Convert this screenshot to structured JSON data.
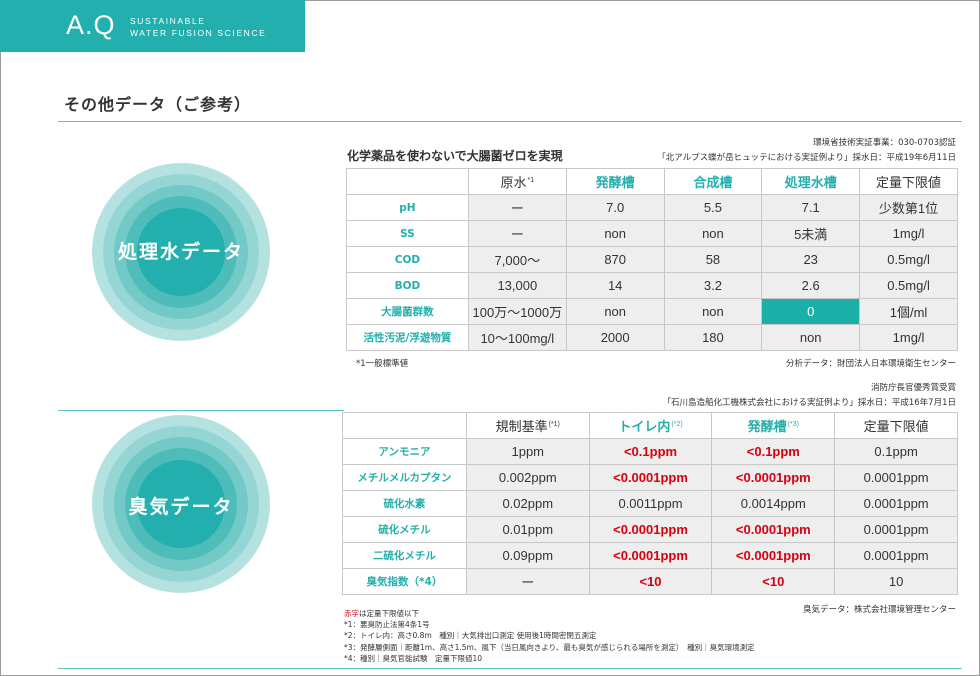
{
  "brand": {
    "mark": "A.Q",
    "tagline_1": "SUSTAINABLE",
    "tagline_2": "WATER FUSION SCIENCE"
  },
  "page_title": "その他データ（ご参考）",
  "colors": {
    "accent": "#23afad",
    "highlight": "#1ab0a8",
    "alert_red": "#d8000e"
  },
  "section1": {
    "circle_label": "処理水データ",
    "certification": "環境省技術実証事業：030-0703認証",
    "source_line": "「北アルプス蝶が岳ヒュッテにおける実証例より」採水日：平成19年6月11日",
    "table_title": "化学薬品を使わないで大腸菌ゼロを実現",
    "headers": [
      "",
      "原水",
      "発酵槽",
      "合成槽",
      "処理水槽",
      "定量下限値"
    ],
    "header_note": "*1",
    "rows": [
      {
        "label": "pH",
        "c1": "ー",
        "c2": "7.0",
        "c3": "5.5",
        "c4": "7.1",
        "c5": "少数第1位"
      },
      {
        "label": "SS",
        "c1": "ー",
        "c2": "non",
        "c3": "non",
        "c4": "5未満",
        "c5": "1mg/l"
      },
      {
        "label": "COD",
        "c1": "7,000〜",
        "c2": "870",
        "c3": "58",
        "c4": "23",
        "c5": "0.5mg/l"
      },
      {
        "label": "BOD",
        "c1": "13,000",
        "c2": "14",
        "c3": "3.2",
        "c4": "2.6",
        "c5": "0.5mg/l"
      },
      {
        "label": "大腸菌群数",
        "c1": "100万〜1000万",
        "c2": "non",
        "c3": "non",
        "c4": "0",
        "c5": "1個/ml"
      },
      {
        "label": "活性汚泥/浮遊物質",
        "c1": "10〜100mg/l",
        "c2": "2000",
        "c3": "180",
        "c4": "non",
        "c5": "1mg/l"
      }
    ],
    "footnote": "*1一般標準値",
    "analysis": "分析データ：財団法人日本環境衛生センター"
  },
  "section2": {
    "circle_label": "臭気データ",
    "award": "消防庁長官優秀賞受賞",
    "source_line": "「石川島造船化工機株式会社における実証例より」採水日：平成16年7月1日",
    "headers": [
      "",
      "規制基準",
      "トイレ内",
      "発酵槽",
      "定量下限値"
    ],
    "header_notes": [
      "",
      "(*1)",
      "(*2)",
      "(*3)",
      ""
    ],
    "rows": [
      {
        "label": "アンモニア",
        "c1": "1ppm",
        "c2": "<0.1ppm",
        "c3": "<0.1ppm",
        "c4": "0.1ppm"
      },
      {
        "label": "メチルメルカプタン",
        "c1": "0.002ppm",
        "c2": "<0.0001ppm",
        "c3": "<0.0001ppm",
        "c4": "0.0001ppm"
      },
      {
        "label": "硫化水素",
        "c1": "0.02ppm",
        "c2": "0.0011ppm",
        "c3": "0.0014ppm",
        "c4": "0.0001ppm"
      },
      {
        "label": "硫化メチル",
        "c1": "0.01ppm",
        "c2": "<0.0001ppm",
        "c3": "<0.0001ppm",
        "c4": "0.0001ppm"
      },
      {
        "label": "二硫化メチル",
        "c1": "0.09ppm",
        "c2": "<0.0001ppm",
        "c3": "<0.0001ppm",
        "c4": "0.0001ppm"
      },
      {
        "label": "臭気指数（*4）",
        "c1": "ー",
        "c2": "<10",
        "c3": "<10",
        "c4": "10"
      }
    ],
    "odor_data": "臭気データ：株式会社環境管理センター",
    "footnotes": {
      "red_word": "赤字",
      "legend_rest": "は定量下限値以下",
      "n1": "*1：悪臭防止法第4条1号",
      "n2": "*2：トイレ内：高さ0.8m　種別｜大気排出口測定 使用後1時間密閉五測定",
      "n3": "*3：発酵層側面｜距離1m、高さ1.5m、風下（当日風向きより、最も臭気が感じられる場所を測定）　種別｜臭気環境測定",
      "n4": "*4：種別｜臭気官能試験　定量下限値10"
    }
  }
}
